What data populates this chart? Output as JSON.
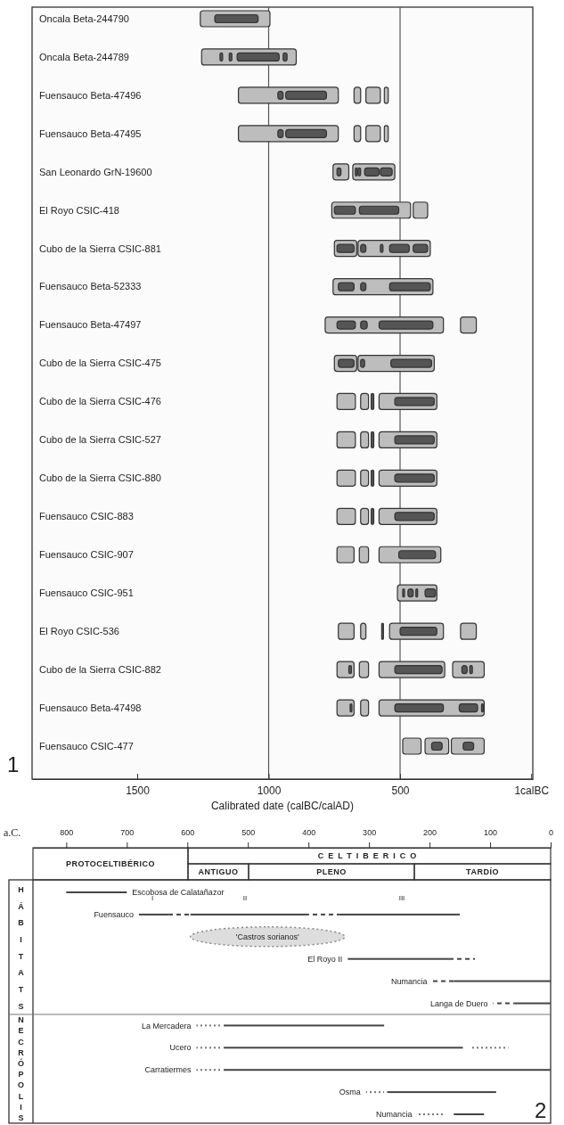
{
  "chart_data": [
    {
      "type": "bar",
      "orientation": "horizontal",
      "xlabel": "Calibrated date (calBC/calAD)",
      "annotations": [
        "1"
      ],
      "xlim": [
        1900,
        -5
      ],
      "xticks": [
        1500,
        1000,
        500,
        {
          "value": 1,
          "label": "1calBC"
        }
      ],
      "ref_lines": [
        {
          "axis": "x",
          "value": 1000
        },
        {
          "axis": "x",
          "value": 500
        }
      ],
      "categories": [
        "Oncala Beta-244790",
        "Oncala Beta-244789",
        "Fuensauco Beta-47496",
        "Fuensauco Beta-47495",
        "San Leonardo GrN-19600",
        "El Royo CSIC-418",
        "Cubo de la Sierra CSIC-881",
        "Fuensauco Beta-52333",
        "Fuensauco Beta-47497",
        "Cubo de la Sierra CSIC-475",
        "Cubo de la Sierra CSIC-476",
        "Cubo de la Sierra CSIC-527",
        "Cubo de la Sierra CSIC-880",
        "Fuensauco CSIC-883",
        "Fuensauco CSIC-907",
        "Fuensauco CSIC-951",
        "El Royo CSIC-536",
        "Cubo de la Sierra CSIC-882",
        "Fuensauco Beta-47498",
        "Fuensauco CSIC-477"
      ],
      "series": [
        {
          "color": "#bdbdbd",
          "base": [
            995,
            895,
            735,
            735,
            695,
            460,
            665,
            375,
            335,
            665,
            670,
            670,
            670,
            670,
            675,
            360,
            675,
            675,
            675,
            420
          ],
          "values": [
            265,
            360,
            380,
            380,
            60,
            300,
            85,
            380,
            450,
            85,
            70,
            70,
            70,
            70,
            65,
            150,
            60,
            65,
            65,
            70
          ]
        },
        {
          "color": "#bdbdbd",
          "base": [
            null,
            null,
            650,
            650,
            520,
            395,
            385,
            null,
            210,
            370,
            620,
            620,
            620,
            620,
            620,
            null,
            630,
            620,
            620,
            315
          ],
          "values": [
            null,
            null,
            25,
            25,
            160,
            55,
            275,
            null,
            60,
            290,
            30,
            30,
            30,
            30,
            35,
            null,
            20,
            35,
            30,
            90
          ]
        },
        {
          "color": "#bdbdbd",
          "base": [
            null,
            null,
            575,
            575,
            null,
            null,
            null,
            null,
            null,
            null,
            360,
            360,
            360,
            360,
            345,
            null,
            335,
            330,
            180,
            180
          ],
          "values": [
            null,
            null,
            55,
            55,
            null,
            null,
            null,
            null,
            null,
            null,
            220,
            220,
            220,
            220,
            235,
            null,
            205,
            250,
            400,
            125
          ]
        },
        {
          "color": "#bdbdbd",
          "base": [
            null,
            null,
            545,
            545,
            null,
            null,
            null,
            null,
            null,
            null,
            null,
            null,
            null,
            null,
            null,
            null,
            210,
            180,
            null,
            null
          ],
          "values": [
            null,
            null,
            15,
            15,
            null,
            null,
            null,
            null,
            null,
            null,
            null,
            null,
            null,
            null,
            null,
            null,
            60,
            120,
            null,
            null
          ]
        },
        {
          "color": "#555555",
          "base": [
            1040,
            1175,
            945,
            945,
            725,
            670,
            675,
            675,
            670,
            675,
            600,
            600,
            600,
            600,
            365,
            485,
            565,
            685,
            685,
            340
          ],
          "values": [
            165,
            10,
            20,
            20,
            15,
            80,
            65,
            60,
            70,
            60,
            10,
            10,
            10,
            10,
            140,
            5,
            5,
            10,
            5,
            40
          ]
        },
        {
          "color": "#555555",
          "base": [
            null,
            1140,
            780,
            780,
            665,
            505,
            630,
            630,
            625,
            635,
            370,
            370,
            370,
            370,
            null,
            450,
            360,
            340,
            335,
            220
          ],
          "values": [
            null,
            10,
            155,
            155,
            5,
            150,
            20,
            20,
            25,
            15,
            150,
            150,
            150,
            150,
            null,
            20,
            140,
            180,
            185,
            40
          ]
        },
        {
          "color": "#555555",
          "base": [
            null,
            960,
            null,
            null,
            650,
            null,
            565,
            385,
            375,
            380,
            null,
            null,
            null,
            null,
            null,
            435,
            null,
            245,
            205,
            null
          ],
          "values": [
            null,
            160,
            null,
            null,
            10,
            null,
            10,
            155,
            205,
            155,
            null,
            null,
            null,
            null,
            null,
            5,
            null,
            20,
            70,
            null
          ]
        },
        {
          "color": "#555555",
          "base": [
            null,
            930,
            null,
            null,
            580,
            null,
            465,
            null,
            null,
            null,
            null,
            null,
            null,
            null,
            null,
            365,
            null,
            225,
            185,
            null
          ],
          "values": [
            null,
            15,
            null,
            null,
            55,
            null,
            75,
            null,
            null,
            null,
            null,
            null,
            null,
            null,
            null,
            40,
            null,
            10,
            5,
            null
          ]
        },
        {
          "color": "#555555",
          "base": [
            null,
            null,
            null,
            null,
            530,
            null,
            395,
            null,
            null,
            null,
            null,
            null,
            null,
            null,
            null,
            null,
            null,
            null,
            null,
            null
          ],
          "values": [
            null,
            null,
            null,
            null,
            45,
            null,
            55,
            null,
            null,
            null,
            null,
            null,
            null,
            null,
            null,
            null,
            null,
            null,
            null,
            null
          ]
        }
      ]
    },
    {
      "type": "bar",
      "orientation": "horizontal",
      "xlabel": "a.C.",
      "xlim": [
        855,
        0
      ],
      "xticks": [
        800,
        700,
        600,
        500,
        400,
        300,
        200,
        100,
        0
      ],
      "annotations": [
        "PROTOCELTIBÉRICO",
        "CELTIBERICO",
        "ANTIGUO",
        "PLENO",
        "TARDÍO",
        "HÁBITATS",
        "NECRÓPOLIS",
        "I",
        "II",
        "III",
        "2"
      ],
      "categories": [
        "Escobosa de Calatañazor",
        "Fuensauco",
        "'Castros sorianos'",
        "El Royo II",
        "Numancia",
        "Langa de Duero",
        "La Mercadera",
        "Ucero",
        "Carratiermes",
        "Osma",
        "Numancia"
      ],
      "series": [
        {
          "color": "#444444",
          "base": [
            700,
            630,
            null,
            165,
            0,
            0,
            275,
            145,
            0,
            90,
            110
          ],
          "values": [
            100,
            50,
            null,
            170,
            160,
            60,
            265,
            395,
            540,
            180,
            50
          ]
        },
        {
          "color": "#444444",
          "base": [
            null,
            400,
            null,
            null,
            null,
            null,
            null,
            null,
            null,
            null,
            null
          ],
          "values": [
            null,
            195,
            null,
            null,
            null,
            null,
            null,
            null,
            null,
            null,
            null
          ]
        },
        {
          "color": "#444444",
          "base": [
            null,
            150,
            null,
            null,
            null,
            null,
            null,
            null,
            null,
            null,
            null
          ],
          "values": [
            null,
            200,
            null,
            null,
            null,
            null,
            null,
            null,
            null,
            null,
            null
          ]
        },
        {
          "color": "#444444",
          "line_style": "dashed",
          "base": [
            null,
            595,
            null,
            125,
            160,
            60,
            null,
            null,
            null,
            null,
            null
          ],
          "values": [
            null,
            35,
            null,
            40,
            35,
            35,
            null,
            null,
            null,
            null,
            null
          ]
        },
        {
          "color": "#444444",
          "line_style": "dashed",
          "base": [
            null,
            350,
            null,
            null,
            null,
            null,
            null,
            null,
            null,
            null,
            null
          ],
          "values": [
            null,
            50,
            null,
            null,
            null,
            null,
            null,
            null,
            null,
            null,
            null
          ]
        },
        {
          "color": "#777777",
          "line_style": "dotted",
          "base": [
            null,
            null,
            null,
            null,
            null,
            null,
            545,
            545,
            545,
            275,
            175
          ],
          "values": [
            null,
            null,
            null,
            null,
            null,
            null,
            40,
            40,
            40,
            30,
            45
          ]
        },
        {
          "color": "#777777",
          "line_style": "dotted",
          "base": [
            null,
            null,
            null,
            null,
            null,
            null,
            null,
            70,
            null,
            null,
            null
          ],
          "values": [
            null,
            null,
            null,
            null,
            null,
            null,
            null,
            60,
            null,
            null,
            null
          ]
        },
        {
          "color": "#dddddd",
          "line_style": "dotted",
          "base": [
            null,
            null,
            340,
            null,
            null,
            null,
            null,
            null,
            null,
            null,
            null
          ],
          "values": [
            null,
            null,
            255,
            null,
            null,
            null,
            null,
            null,
            null,
            null,
            null
          ]
        }
      ]
    }
  ]
}
